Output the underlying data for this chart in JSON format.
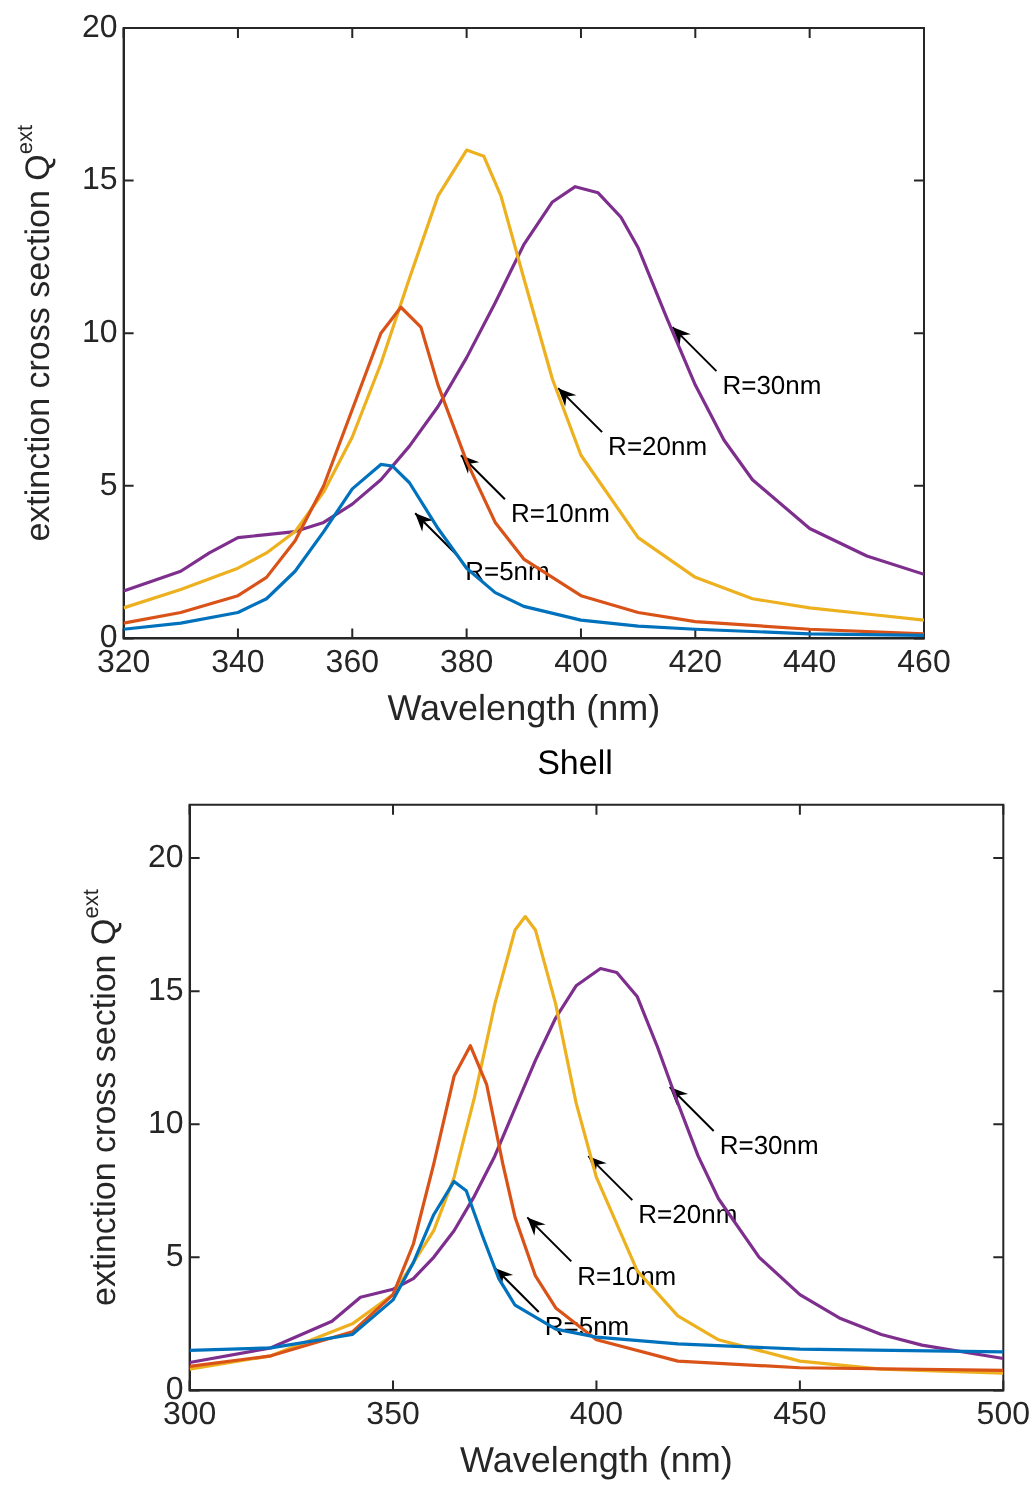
{
  "chart_data": [
    {
      "type": "line",
      "xlabel": "Wavelength (nm)",
      "ylabel": "extinction cross section Q$^{ext}$",
      "xlim": [
        320,
        460
      ],
      "xticks": [
        320,
        340,
        360,
        380,
        400,
        420,
        440,
        460
      ],
      "ylim": [
        0,
        20
      ],
      "yticks": [
        0,
        5,
        10,
        15,
        20
      ],
      "grid": false,
      "legend": false,
      "marker": "none",
      "line_style": "solid",
      "series": [
        {
          "color": "#0072bd",
          "x": [
            320,
            330,
            340,
            345,
            350,
            355,
            360,
            365,
            367,
            370,
            375,
            380,
            385,
            390,
            400,
            410,
            420,
            440,
            460
          ],
          "values": [
            0.3,
            0.5,
            0.85,
            1.3,
            2.2,
            3.5,
            4.9,
            5.7,
            5.65,
            5.1,
            3.6,
            2.3,
            1.5,
            1.05,
            0.6,
            0.4,
            0.3,
            0.15,
            0.1
          ]
        },
        {
          "color": "#d95319",
          "x": [
            320,
            330,
            340,
            345,
            350,
            355,
            360,
            365,
            368.5,
            372,
            375,
            380,
            385,
            390,
            400,
            410,
            420,
            440,
            460
          ],
          "values": [
            0.5,
            0.85,
            1.4,
            2.0,
            3.2,
            5.0,
            7.5,
            10.0,
            10.85,
            10.2,
            8.3,
            5.8,
            3.8,
            2.6,
            1.4,
            0.85,
            0.55,
            0.3,
            0.15
          ]
        },
        {
          "color": "#edb120",
          "x": [
            320,
            330,
            340,
            345,
            350,
            355,
            360,
            365,
            370,
            375,
            380,
            383,
            386,
            390,
            395,
            400,
            410,
            420,
            430,
            440,
            450,
            460
          ],
          "values": [
            1.0,
            1.6,
            2.3,
            2.8,
            3.5,
            4.8,
            6.6,
            9.0,
            11.8,
            14.5,
            16.0,
            15.8,
            14.5,
            11.8,
            8.5,
            6.0,
            3.3,
            2.0,
            1.3,
            1.0,
            0.8,
            0.6
          ]
        },
        {
          "color": "#7e2f8e",
          "x": [
            320,
            330,
            335,
            340,
            345,
            350,
            355,
            360,
            365,
            370,
            375,
            380,
            385,
            390,
            395,
            399,
            403,
            407,
            410,
            415,
            420,
            425,
            430,
            440,
            450,
            460
          ],
          "values": [
            1.55,
            2.2,
            2.8,
            3.3,
            3.4,
            3.5,
            3.8,
            4.4,
            5.2,
            6.3,
            7.6,
            9.2,
            11.0,
            12.9,
            14.3,
            14.8,
            14.6,
            13.8,
            12.8,
            10.5,
            8.3,
            6.5,
            5.2,
            3.6,
            2.7,
            2.1
          ]
        }
      ],
      "annotations": [
        {
          "text": "R=5nm",
          "x": 371,
          "y": 4.1
        },
        {
          "text": "R=10nm",
          "x": 379,
          "y": 6.0
        },
        {
          "text": "R=20nm",
          "x": 396,
          "y": 8.2
        },
        {
          "text": "R=30nm",
          "x": 416,
          "y": 10.2
        }
      ]
    },
    {
      "type": "line",
      "title": "Shell",
      "xlabel": "Wavelength (nm)",
      "ylabel": "extinction cross section Q$^{ext}$",
      "xlim": [
        300,
        500
      ],
      "xticks": [
        300,
        350,
        400,
        450,
        500
      ],
      "ylim": [
        0,
        22
      ],
      "yticks": [
        0,
        5,
        10,
        15,
        20
      ],
      "grid": false,
      "legend": false,
      "marker": "none",
      "line_style": "solid",
      "series": [
        {
          "color": "#0072bd",
          "x": [
            300,
            320,
            340,
            350,
            355,
            360,
            365,
            368,
            372,
            376,
            380,
            390,
            400,
            420,
            450,
            500
          ],
          "values": [
            1.5,
            1.6,
            2.1,
            3.4,
            4.8,
            6.6,
            7.85,
            7.5,
            5.8,
            4.2,
            3.2,
            2.3,
            2.0,
            1.75,
            1.55,
            1.45
          ]
        },
        {
          "color": "#d95319",
          "x": [
            300,
            320,
            340,
            350,
            355,
            360,
            365,
            369,
            373,
            377,
            380,
            385,
            390,
            400,
            420,
            450,
            500
          ],
          "values": [
            0.9,
            1.3,
            2.2,
            3.6,
            5.5,
            8.5,
            11.8,
            12.95,
            11.5,
            8.5,
            6.5,
            4.3,
            3.1,
            1.9,
            1.1,
            0.85,
            0.75
          ]
        },
        {
          "color": "#edb120",
          "x": [
            300,
            320,
            340,
            350,
            360,
            365,
            370,
            375,
            380,
            382.5,
            385,
            390,
            395,
            400,
            410,
            420,
            430,
            450,
            470,
            500
          ],
          "values": [
            0.8,
            1.3,
            2.5,
            3.6,
            6.0,
            8.0,
            11.0,
            14.5,
            17.3,
            17.8,
            17.3,
            14.5,
            10.8,
            8.0,
            4.5,
            2.8,
            1.9,
            1.1,
            0.8,
            0.65
          ]
        },
        {
          "color": "#7e2f8e",
          "x": [
            300,
            320,
            335,
            342,
            350,
            355,
            360,
            365,
            370,
            375,
            380,
            385,
            390,
            395,
            401,
            405,
            410,
            415,
            420,
            425,
            430,
            440,
            450,
            460,
            470,
            480,
            500
          ],
          "values": [
            1.05,
            1.6,
            2.6,
            3.5,
            3.8,
            4.2,
            5.0,
            6.0,
            7.3,
            8.8,
            10.6,
            12.4,
            14.0,
            15.2,
            15.85,
            15.7,
            14.8,
            12.9,
            10.8,
            8.8,
            7.2,
            5.0,
            3.6,
            2.7,
            2.1,
            1.7,
            1.2
          ]
        }
      ],
      "annotations": [
        {
          "text": "R=5nm",
          "x": 375,
          "y": 4.6
        },
        {
          "text": "R=10nm",
          "x": 383,
          "y": 6.5
        },
        {
          "text": "R=20nm",
          "x": 398,
          "y": 8.8
        },
        {
          "text": "R=30nm",
          "x": 418,
          "y": 11.4
        }
      ]
    }
  ]
}
